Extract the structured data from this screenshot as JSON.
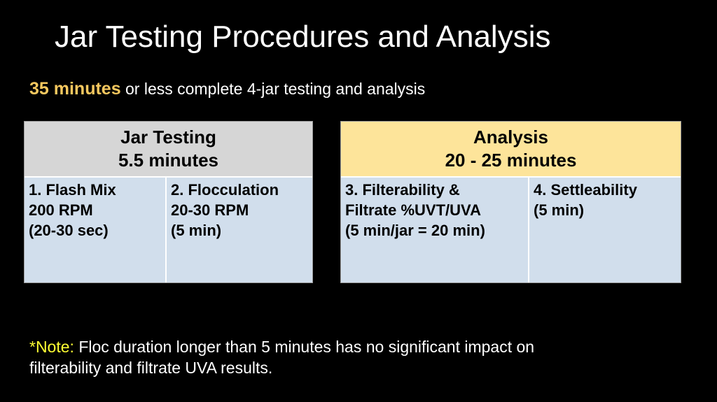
{
  "title": "Jar Testing Procedures and Analysis",
  "subtitle": {
    "highlight": "35 minutes",
    "rest": " or less complete 4-jar testing and analysis"
  },
  "panels": [
    {
      "header_line1": "Jar Testing",
      "header_line2": "5.5 minutes",
      "cells": [
        "1. Flash Mix\n200 RPM\n(20-30 sec)",
        "2. Flocculation\n20-30 RPM\n(5 min)"
      ]
    },
    {
      "header_line1": "Analysis",
      "header_line2": "20 - 25 minutes",
      "cells": [
        "3. Filterability &\nFiltrate %UVT/UVA\n(5 min/jar = 20 min)",
        "4. Settleability\n(5 min)"
      ]
    }
  ],
  "note": {
    "label": "*Note:",
    "text": " Floc duration longer than 5 minutes has no significant impact on filterability and filtrate UVA results."
  },
  "colors": {
    "background": "#000000",
    "highlight": "#f6c85f",
    "note_label": "#ffff33",
    "jar_testing_header": "#d6d6d6",
    "analysis_header": "#fde49a",
    "cell_fill": "#d1deec"
  }
}
